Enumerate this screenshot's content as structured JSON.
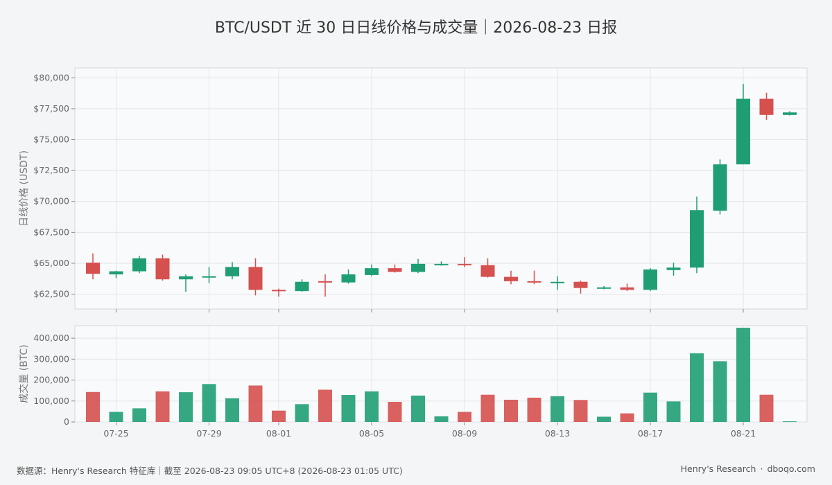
{
  "title": "BTC/USDT 近 30 日日线价格与成交量｜2026-08-23 日报",
  "footer": {
    "source": "数据源：Henry's Research 特征库｜截至 2026-08-23 09:05 UTC+8 (2026-08-23 01:05 UTC)",
    "brand": "Henry's Research",
    "separator": "·",
    "site": "dboqo.com"
  },
  "colors": {
    "up": "#1f9e74",
    "down": "#d5504f",
    "background": "#f4f5f7",
    "panel": "#f9fafb",
    "grid": "#e2e4e8"
  },
  "chart_data": [
    {
      "type": "candlestick",
      "ylabel": "日线价格 (USDT)",
      "ylim": [
        61300,
        80800
      ],
      "yticks": [
        62500,
        65000,
        67500,
        70000,
        72500,
        75000,
        77500,
        80000
      ],
      "ytick_labels": [
        "$62,500",
        "$65,000",
        "$67,500",
        "$70,000",
        "$72,500",
        "$75,000",
        "$77,500",
        "$80,000"
      ],
      "grid": true,
      "x": [
        "07-24",
        "07-25",
        "07-26",
        "07-27",
        "07-28",
        "07-29",
        "07-30",
        "07-31",
        "08-01",
        "08-02",
        "08-03",
        "08-04",
        "08-05",
        "08-06",
        "08-07",
        "08-08",
        "08-09",
        "08-10",
        "08-11",
        "08-12",
        "08-13",
        "08-14",
        "08-15",
        "08-16",
        "08-17",
        "08-18",
        "08-19",
        "08-20",
        "08-21",
        "08-22",
        "08-23"
      ],
      "xticks": [
        "07-25",
        "07-29",
        "08-01",
        "08-05",
        "08-09",
        "08-13",
        "08-17",
        "08-21"
      ],
      "candles": [
        {
          "open": 65050,
          "high": 65800,
          "low": 63700,
          "close": 64150
        },
        {
          "open": 64100,
          "high": 64400,
          "low": 63800,
          "close": 64350
        },
        {
          "open": 64350,
          "high": 65600,
          "low": 64200,
          "close": 65400
        },
        {
          "open": 65400,
          "high": 65700,
          "low": 63600,
          "close": 63700
        },
        {
          "open": 63700,
          "high": 64100,
          "low": 62700,
          "close": 63950
        },
        {
          "open": 63900,
          "high": 64700,
          "low": 63400,
          "close": 63950
        },
        {
          "open": 63950,
          "high": 65100,
          "low": 63700,
          "close": 64700
        },
        {
          "open": 64700,
          "high": 65400,
          "low": 62400,
          "close": 62850
        },
        {
          "open": 62850,
          "high": 62950,
          "low": 62300,
          "close": 62750
        },
        {
          "open": 62750,
          "high": 63700,
          "low": 62700,
          "close": 63500
        },
        {
          "open": 63550,
          "high": 64100,
          "low": 62300,
          "close": 63450
        },
        {
          "open": 63450,
          "high": 64500,
          "low": 63350,
          "close": 64100
        },
        {
          "open": 64050,
          "high": 64900,
          "low": 63950,
          "close": 64600
        },
        {
          "open": 64600,
          "high": 64900,
          "low": 64250,
          "close": 64300
        },
        {
          "open": 64300,
          "high": 65350,
          "low": 64200,
          "close": 64950
        },
        {
          "open": 64900,
          "high": 65150,
          "low": 64800,
          "close": 64950
        },
        {
          "open": 64950,
          "high": 65500,
          "low": 64700,
          "close": 64850
        },
        {
          "open": 64850,
          "high": 65400,
          "low": 63850,
          "close": 63900
        },
        {
          "open": 63900,
          "high": 64400,
          "low": 63300,
          "close": 63550
        },
        {
          "open": 63550,
          "high": 64400,
          "low": 63300,
          "close": 63450
        },
        {
          "open": 63450,
          "high": 63950,
          "low": 62850,
          "close": 63500
        },
        {
          "open": 63500,
          "high": 63600,
          "low": 62550,
          "close": 63000
        },
        {
          "open": 63000,
          "high": 63150,
          "low": 62900,
          "close": 63050
        },
        {
          "open": 63050,
          "high": 63350,
          "low": 62750,
          "close": 62850
        },
        {
          "open": 62850,
          "high": 64600,
          "low": 62750,
          "close": 64500
        },
        {
          "open": 64450,
          "high": 65050,
          "low": 64000,
          "close": 64650
        },
        {
          "open": 64650,
          "high": 70400,
          "low": 64200,
          "close": 69300
        },
        {
          "open": 69250,
          "high": 73400,
          "low": 68950,
          "close": 73000
        },
        {
          "open": 73000,
          "high": 79500,
          "low": 73000,
          "close": 78300
        },
        {
          "open": 78300,
          "high": 78800,
          "low": 76600,
          "close": 77000
        },
        {
          "open": 77000,
          "high": 77300,
          "low": 76950,
          "close": 77200
        }
      ]
    },
    {
      "type": "bar",
      "ylabel": "成交量 (BTC)",
      "ylim": [
        0,
        460000
      ],
      "yticks": [
        0,
        100000,
        200000,
        300000,
        400000
      ],
      "ytick_labels": [
        "0",
        "100,000",
        "200,000",
        "300,000",
        "400,000"
      ],
      "grid": true,
      "values": [
        143000,
        48000,
        65000,
        146000,
        142000,
        181000,
        113000,
        174000,
        54000,
        85000,
        154000,
        129000,
        146000,
        96000,
        126000,
        27000,
        48000,
        130000,
        106000,
        116000,
        123000,
        105000,
        25000,
        41000,
        140000,
        98000,
        328000,
        290000,
        450000,
        130000,
        3000
      ],
      "direction": [
        "down",
        "up",
        "up",
        "down",
        "up",
        "up",
        "up",
        "down",
        "down",
        "up",
        "down",
        "up",
        "up",
        "down",
        "up",
        "up",
        "down",
        "down",
        "down",
        "down",
        "up",
        "down",
        "up",
        "down",
        "up",
        "up",
        "up",
        "up",
        "up",
        "down",
        "up"
      ]
    }
  ]
}
